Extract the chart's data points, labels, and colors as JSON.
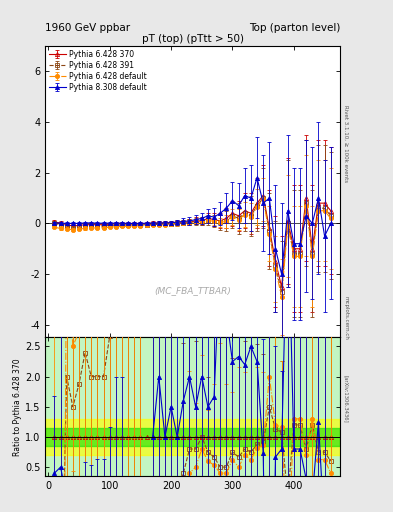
{
  "title_left": "1960 GeV ppbar",
  "title_right": "Top (parton level)",
  "plot_title": "pT (top) (pTtt > 50)",
  "ylabel_ratio": "Ratio to Pythia 6.428 370",
  "right_label": "Rivet 3.1.10, ≥ 100k events",
  "watermark": "(MC_FBA_TTBAR)",
  "arxiv_label": "[arXiv:1306.3436]",
  "url_label": "mcplots.cern.ch",
  "ylim_main": [
    -4.5,
    7.0
  ],
  "ylim_ratio": [
    0.35,
    2.65
  ],
  "xlim": [
    -5,
    475
  ],
  "yticks_main": [
    -4,
    -2,
    0,
    2,
    4,
    6
  ],
  "yticks_ratio": [
    0.5,
    1.0,
    1.5,
    2.0,
    2.5
  ],
  "series": [
    {
      "label": "Pythia 6.428 370",
      "color": "#cc0000",
      "marker": "^",
      "linestyle": "-",
      "markersize": 3,
      "fillstyle": "none",
      "linewidth": 0.8
    },
    {
      "label": "Pythia 6.428 391",
      "color": "#8b4513",
      "marker": "s",
      "linestyle": "--",
      "markersize": 3,
      "fillstyle": "none",
      "linewidth": 0.8
    },
    {
      "label": "Pythia 6.428 default",
      "color": "#ff8c00",
      "marker": "o",
      "linestyle": "-.",
      "markersize": 3,
      "fillstyle": "full",
      "linewidth": 0.8
    },
    {
      "label": "Pythia 8.308 default",
      "color": "#0000cc",
      "marker": "^",
      "linestyle": "-",
      "markersize": 3,
      "fillstyle": "full",
      "linewidth": 0.8
    }
  ],
  "x_centers": [
    10,
    20,
    30,
    40,
    50,
    60,
    70,
    80,
    90,
    100,
    110,
    120,
    130,
    140,
    150,
    160,
    170,
    180,
    190,
    200,
    210,
    220,
    230,
    240,
    250,
    260,
    270,
    280,
    290,
    300,
    310,
    320,
    330,
    340,
    350,
    360,
    370,
    380,
    390,
    400,
    410,
    420,
    430,
    440,
    450,
    460
  ],
  "ref_y": [
    0.05,
    0.02,
    -0.05,
    -0.1,
    -0.08,
    -0.05,
    -0.05,
    -0.05,
    -0.05,
    -0.03,
    -0.02,
    -0.02,
    -0.02,
    -0.02,
    -0.02,
    0.0,
    0.01,
    0.01,
    0.02,
    0.02,
    0.05,
    0.05,
    0.05,
    0.1,
    0.1,
    0.2,
    0.15,
    0.1,
    0.2,
    0.4,
    0.3,
    0.5,
    0.4,
    0.8,
    1.1,
    -0.2,
    -1.5,
    -2.5,
    0.1,
    -1.0,
    -1.0,
    1.0,
    -1.0,
    0.8,
    0.8,
    0.5
  ],
  "ref_yerr": [
    0.1,
    0.08,
    0.08,
    0.08,
    0.07,
    0.07,
    0.06,
    0.06,
    0.06,
    0.06,
    0.06,
    0.06,
    0.06,
    0.06,
    0.06,
    0.07,
    0.07,
    0.07,
    0.08,
    0.08,
    0.1,
    0.1,
    0.12,
    0.14,
    0.16,
    0.2,
    0.25,
    0.3,
    0.4,
    0.5,
    0.6,
    0.7,
    0.8,
    1.0,
    1.2,
    1.5,
    1.8,
    2.0,
    2.5,
    2.5,
    2.5,
    2.5,
    2.5,
    2.5,
    2.5,
    2.5
  ],
  "s391_y": [
    0.0,
    -0.05,
    -0.1,
    -0.15,
    -0.15,
    -0.12,
    -0.1,
    -0.1,
    -0.1,
    -0.08,
    -0.07,
    -0.07,
    -0.06,
    -0.06,
    -0.06,
    -0.05,
    -0.04,
    -0.04,
    -0.03,
    -0.02,
    0.0,
    0.02,
    0.04,
    0.08,
    0.1,
    0.15,
    0.1,
    0.05,
    0.1,
    0.3,
    0.2,
    0.4,
    0.3,
    0.7,
    1.0,
    -0.3,
    -1.7,
    -2.7,
    0.0,
    -1.2,
    -1.2,
    0.8,
    -1.2,
    0.6,
    0.6,
    0.3
  ],
  "s391_yerr": [
    0.1,
    0.08,
    0.08,
    0.08,
    0.07,
    0.07,
    0.06,
    0.06,
    0.06,
    0.06,
    0.06,
    0.06,
    0.06,
    0.06,
    0.06,
    0.07,
    0.07,
    0.07,
    0.08,
    0.08,
    0.1,
    0.1,
    0.12,
    0.14,
    0.16,
    0.2,
    0.25,
    0.3,
    0.4,
    0.5,
    0.6,
    0.7,
    0.8,
    1.0,
    1.2,
    1.5,
    1.8,
    2.0,
    2.5,
    2.5,
    2.5,
    2.5,
    2.5,
    2.5,
    2.5,
    2.5
  ],
  "sdef_y": [
    -0.15,
    -0.2,
    -0.22,
    -0.25,
    -0.22,
    -0.2,
    -0.18,
    -0.18,
    -0.17,
    -0.15,
    -0.13,
    -0.12,
    -0.11,
    -0.1,
    -0.1,
    -0.08,
    -0.07,
    -0.06,
    -0.05,
    -0.04,
    -0.02,
    0.0,
    0.02,
    0.05,
    0.08,
    0.12,
    0.08,
    0.04,
    0.08,
    0.25,
    0.15,
    0.35,
    0.25,
    0.65,
    0.95,
    -0.4,
    -1.8,
    -2.9,
    -0.1,
    -1.3,
    -1.3,
    0.7,
    -1.3,
    0.5,
    0.5,
    0.2
  ],
  "sdef_yerr": [
    0.05,
    0.05,
    0.05,
    0.05,
    0.04,
    0.04,
    0.04,
    0.04,
    0.04,
    0.04,
    0.04,
    0.04,
    0.04,
    0.04,
    0.04,
    0.04,
    0.04,
    0.04,
    0.05,
    0.05,
    0.06,
    0.06,
    0.07,
    0.08,
    0.09,
    0.12,
    0.15,
    0.18,
    0.25,
    0.32,
    0.4,
    0.48,
    0.55,
    0.7,
    0.85,
    1.1,
    1.3,
    1.5,
    2.0,
    2.0,
    2.0,
    2.0,
    2.0,
    2.0,
    2.0,
    2.0
  ],
  "p8_y": [
    0.02,
    0.01,
    0.0,
    0.0,
    0.0,
    0.02,
    0.02,
    0.01,
    0.01,
    0.01,
    0.01,
    0.01,
    0.0,
    0.0,
    0.0,
    0.01,
    0.01,
    0.02,
    0.02,
    0.03,
    0.05,
    0.08,
    0.1,
    0.15,
    0.2,
    0.3,
    0.25,
    0.4,
    0.6,
    0.9,
    0.7,
    1.1,
    1.0,
    1.8,
    0.8,
    1.0,
    -1.0,
    -2.0,
    0.5,
    -0.8,
    -0.8,
    0.3,
    0.0,
    1.0,
    -0.5,
    0.0
  ],
  "p8_yerr": [
    0.05,
    0.05,
    0.05,
    0.05,
    0.04,
    0.04,
    0.04,
    0.04,
    0.04,
    0.04,
    0.04,
    0.04,
    0.04,
    0.04,
    0.04,
    0.05,
    0.05,
    0.06,
    0.07,
    0.08,
    0.1,
    0.12,
    0.15,
    0.18,
    0.22,
    0.28,
    0.35,
    0.45,
    0.6,
    0.75,
    0.9,
    1.1,
    1.3,
    1.6,
    1.9,
    2.2,
    2.5,
    2.8,
    3.0,
    3.0,
    3.0,
    3.0,
    3.0,
    3.0,
    3.0,
    3.0
  ],
  "bg_color": "#e8e8e8",
  "plot_bg": "#ffffff"
}
